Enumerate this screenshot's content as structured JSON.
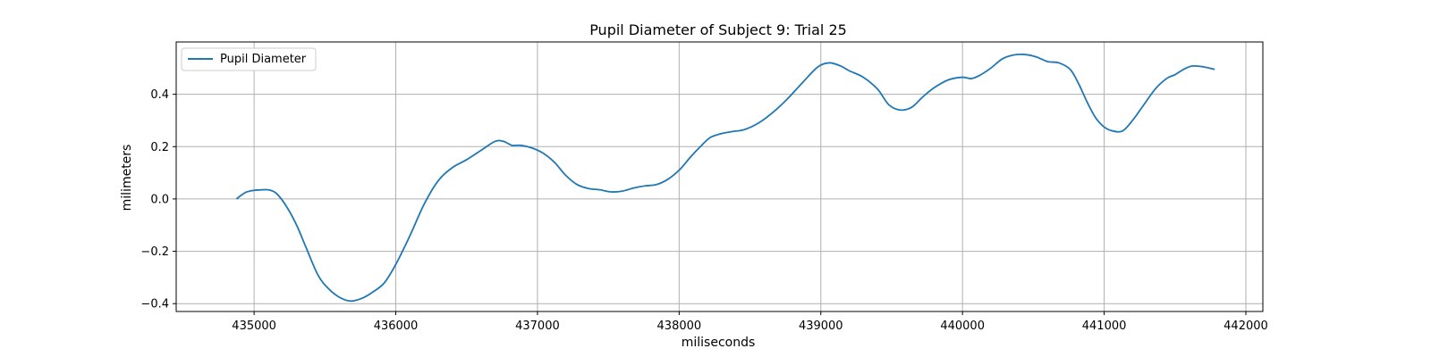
{
  "chart_data": {
    "type": "line",
    "title": "Pupil Diameter of Subject 9: Trial 25",
    "xlabel": "miliseconds",
    "ylabel": "milimeters",
    "xlim": [
      434450,
      442120
    ],
    "ylim": [
      -0.43,
      0.6
    ],
    "xticks": [
      435000,
      436000,
      437000,
      438000,
      439000,
      440000,
      441000,
      442000
    ],
    "yticks": [
      -0.4,
      -0.2,
      0.0,
      0.2,
      0.4
    ],
    "xtick_labels": [
      "435000",
      "436000",
      "437000",
      "438000",
      "439000",
      "440000",
      "441000",
      "442000"
    ],
    "ytick_labels": [
      "−0.4",
      "−0.2",
      "0.0",
      "0.2",
      "0.4"
    ],
    "grid": true,
    "legend_position": "upper-left",
    "series": [
      {
        "name": "Pupil Diameter",
        "color": "#1f77b4",
        "x": [
          434875,
          434940,
          435000,
          435060,
          435110,
          435160,
          435230,
          435300,
          435370,
          435450,
          435520,
          435600,
          435680,
          435760,
          435840,
          435920,
          436000,
          436100,
          436200,
          436300,
          436400,
          436500,
          436600,
          436700,
          436760,
          436820,
          436880,
          436960,
          437040,
          437120,
          437200,
          437280,
          437360,
          437440,
          437520,
          437600,
          437680,
          437760,
          437840,
          437920,
          438000,
          438080,
          438150,
          438220,
          438300,
          438380,
          438460,
          438560,
          438660,
          438760,
          438880,
          438980,
          439060,
          439140,
          439200,
          439300,
          439400,
          439480,
          439560,
          439640,
          439720,
          439800,
          439900,
          440000,
          440060,
          440120,
          440200,
          440280,
          440360,
          440440,
          440520,
          440600,
          440680,
          440760,
          440820,
          440880,
          440940,
          441000,
          441060,
          441130,
          441200,
          441280,
          441360,
          441440,
          441500,
          441560,
          441620,
          441700,
          441780
        ],
        "y": [
          0.0,
          0.025,
          0.033,
          0.035,
          0.034,
          0.02,
          -0.03,
          -0.1,
          -0.19,
          -0.29,
          -0.34,
          -0.375,
          -0.39,
          -0.38,
          -0.355,
          -0.32,
          -0.25,
          -0.14,
          -0.02,
          0.07,
          0.12,
          0.15,
          0.185,
          0.22,
          0.22,
          0.205,
          0.205,
          0.195,
          0.175,
          0.14,
          0.09,
          0.055,
          0.04,
          0.035,
          0.027,
          0.03,
          0.042,
          0.05,
          0.055,
          0.075,
          0.11,
          0.16,
          0.2,
          0.235,
          0.25,
          0.258,
          0.265,
          0.29,
          0.33,
          0.38,
          0.45,
          0.505,
          0.52,
          0.508,
          0.49,
          0.465,
          0.42,
          0.36,
          0.34,
          0.35,
          0.39,
          0.425,
          0.455,
          0.465,
          0.46,
          0.472,
          0.5,
          0.535,
          0.55,
          0.552,
          0.543,
          0.525,
          0.52,
          0.495,
          0.44,
          0.37,
          0.31,
          0.275,
          0.26,
          0.26,
          0.3,
          0.36,
          0.42,
          0.46,
          0.475,
          0.495,
          0.508,
          0.505,
          0.495
        ]
      }
    ]
  }
}
